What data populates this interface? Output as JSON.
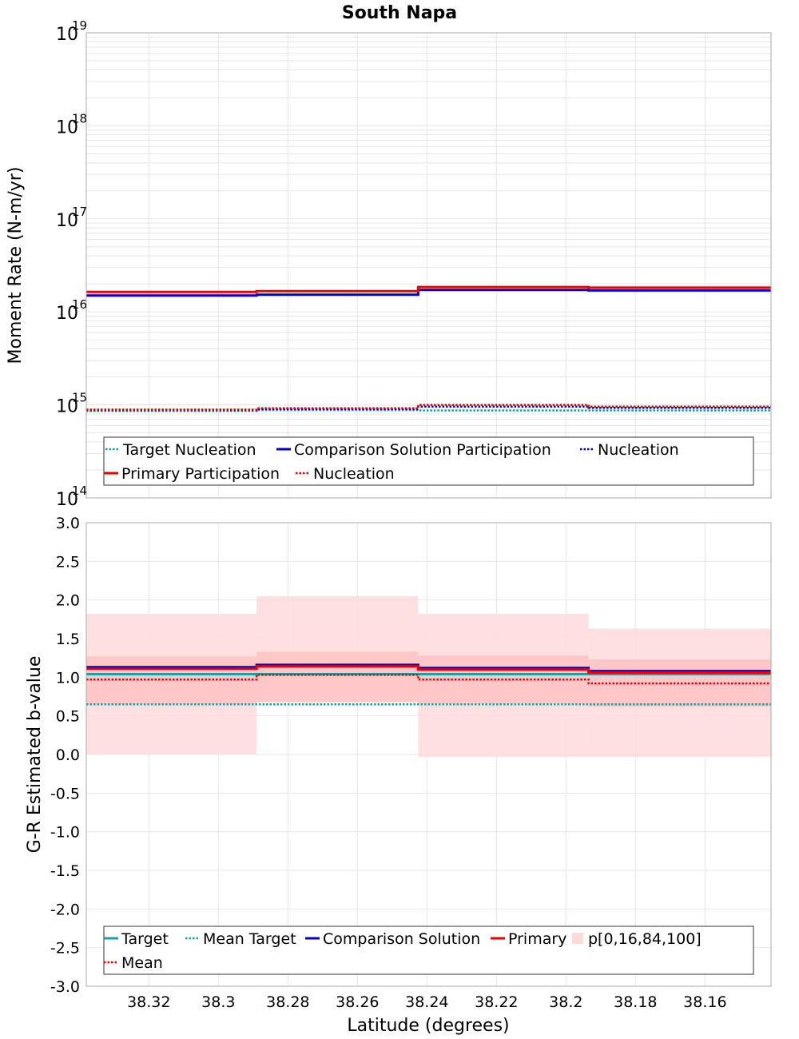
{
  "title": "South Napa",
  "colors": {
    "target": "#17a2a2",
    "comparison": "#0000cc",
    "primary": "#ee0000",
    "band_outer": "#ffdada",
    "band_inner": "#ffbfbf",
    "grid": "#e6e6e6"
  },
  "chart_data": [
    {
      "type": "line",
      "subtype": "step",
      "ylabel": "Moment Rate (N-m/yr)",
      "yscale": "log",
      "ylim_exp": [
        14,
        19
      ],
      "ytick_base": "10",
      "ytick_exps": [
        "19",
        "18",
        "17",
        "16",
        "15",
        "14"
      ],
      "xlim": [
        38.338,
        38.141
      ],
      "bin_edges": [
        38.338,
        38.289,
        38.2425,
        38.1935,
        38.141
      ],
      "series": [
        {
          "name": "Target Nucleation",
          "style": "dotted",
          "color_key": "target",
          "values": [
            860000000000000.0,
            880000000000000.0,
            870000000000000.0,
            870000000000000.0
          ]
        },
        {
          "name": "Comparison Solution Participation",
          "style": "solid",
          "color_key": "comparison",
          "values": [
            1.5e+16,
            1.53e+16,
            1.72e+16,
            1.7e+16
          ]
        },
        {
          "name": "Nucleation",
          "style": "dotted",
          "color_key": "comparison",
          "values": [
            880000000000000.0,
            900000000000000.0,
            960000000000000.0,
            930000000000000.0
          ]
        },
        {
          "name": "Primary Participation",
          "style": "solid",
          "color_key": "primary",
          "values": [
            1.64e+16,
            1.67e+16,
            1.85e+16,
            1.82e+16
          ]
        },
        {
          "name": "Nucleation",
          "style": "dotted",
          "color_key": "primary",
          "values": [
            890000000000000.0,
            920000000000000.0,
            1000000000000000.0,
            960000000000000.0
          ]
        }
      ],
      "legend": [
        {
          "label": "Target Nucleation",
          "style": "dotted",
          "color_key": "target"
        },
        {
          "label": "Comparison Solution Participation",
          "style": "solid",
          "color_key": "comparison"
        },
        {
          "label": "Nucleation",
          "style": "dotted",
          "color_key": "comparison"
        },
        {
          "label": "Primary Participation",
          "style": "solid",
          "color_key": "primary"
        },
        {
          "label": "Nucleation",
          "style": "dotted",
          "color_key": "primary"
        }
      ],
      "legend_placement": "bottom"
    },
    {
      "type": "line",
      "subtype": "step",
      "xlabel": "Latitude (degrees)",
      "ylabel": "G-R Estimated b-value",
      "ylim": [
        -3.0,
        3.0
      ],
      "yticks": [
        "3.0",
        "2.5",
        "2.0",
        "1.5",
        "1.0",
        "0.5",
        "0.0",
        "-0.5",
        "-1.0",
        "-1.5",
        "-2.0",
        "-2.5",
        "-3.0"
      ],
      "xticks": [
        "38.32",
        "38.3",
        "38.28",
        "38.26",
        "38.24",
        "38.22",
        "38.2",
        "38.18",
        "38.16"
      ],
      "xlim": [
        38.338,
        38.141
      ],
      "bin_edges": [
        38.338,
        38.289,
        38.2425,
        38.1935,
        38.141
      ],
      "bands": [
        {
          "name": "p[0,100]",
          "lower": [
            0.0,
            0.67,
            -0.03,
            -0.03
          ],
          "upper": [
            1.82,
            2.05,
            1.82,
            1.63
          ]
        },
        {
          "name": "p[16,84]",
          "lower": [
            0.65,
            0.68,
            0.66,
            0.62
          ],
          "upper": [
            1.27,
            1.33,
            1.28,
            1.23
          ]
        }
      ],
      "series": [
        {
          "name": "Target",
          "style": "solid",
          "color_key": "target",
          "values": [
            1.04,
            1.04,
            1.04,
            1.04
          ]
        },
        {
          "name": "Mean Target",
          "style": "dotted",
          "color_key": "target",
          "values": [
            0.65,
            0.65,
            0.65,
            0.65
          ]
        },
        {
          "name": "Comparison Solution",
          "style": "solid",
          "color_key": "comparison",
          "values": [
            1.13,
            1.16,
            1.12,
            1.08
          ]
        },
        {
          "name": "Primary",
          "style": "solid",
          "color_key": "primary",
          "values": [
            1.11,
            1.14,
            1.1,
            1.06
          ]
        },
        {
          "name": "Mean",
          "style": "dotted",
          "color_key": "primary",
          "values": [
            0.97,
            1.03,
            0.97,
            0.92
          ]
        }
      ],
      "legend": [
        {
          "label": "Target",
          "style": "solid",
          "color_key": "target"
        },
        {
          "label": "Mean Target",
          "style": "dotted",
          "color_key": "target"
        },
        {
          "label": "Comparison Solution",
          "style": "solid",
          "color_key": "comparison"
        },
        {
          "label": "Primary",
          "style": "solid",
          "color_key": "primary"
        },
        {
          "label": "p[0,16,84,100]",
          "style": "box",
          "color_key": "band_outer"
        },
        {
          "label": "Mean",
          "style": "dotted",
          "color_key": "primary"
        }
      ],
      "legend_placement": "bottom"
    }
  ]
}
